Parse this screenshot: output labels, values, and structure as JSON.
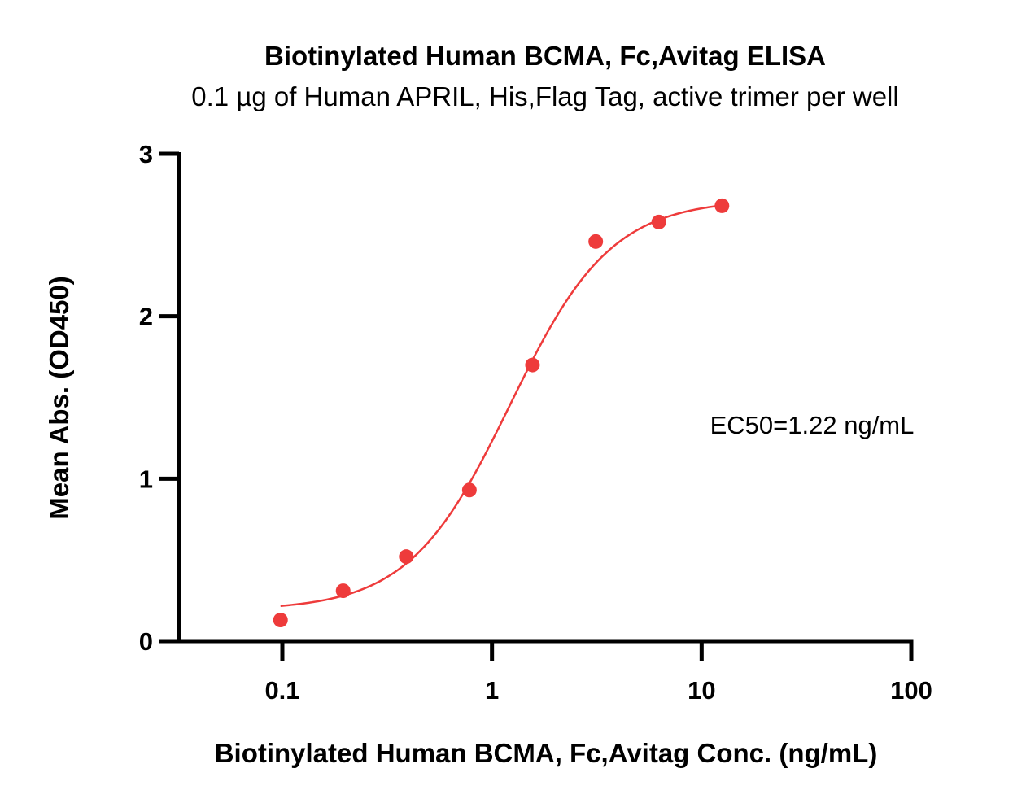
{
  "chart_data": {
    "type": "scatter",
    "title": "Biotinylated Human BCMA, Fc,Avitag ELISA",
    "subtitle": "0.1 µg of Human APRIL, His,Flag Tag, active trimer per well",
    "xlabel": "Biotinylated Human BCMA, Fc,Avitag Conc. (ng/mL)",
    "ylabel": "Mean Abs. (OD450)",
    "x_scale": "log",
    "xlim": [
      0.1,
      100
    ],
    "ylim": [
      0,
      3
    ],
    "x_ticks": [
      0.1,
      1,
      10,
      100
    ],
    "x_tick_labels": [
      "0.1",
      "1",
      "10",
      "100"
    ],
    "y_ticks": [
      0,
      1,
      2,
      3
    ],
    "y_tick_labels": [
      "0",
      "1",
      "2",
      "3"
    ],
    "grid": false,
    "annotation": "EC50=1.22 ng/mL",
    "color": "#ee3b3b",
    "series": [
      {
        "x": [
          0.098,
          0.195,
          0.39,
          0.78,
          1.56,
          3.125,
          6.25,
          12.5
        ],
        "y": [
          0.13,
          0.31,
          0.52,
          0.93,
          1.7,
          2.46,
          2.58,
          2.68
        ]
      }
    ],
    "fit_curve": {
      "model": "4PL",
      "bottom": 0.19,
      "top": 2.72,
      "ec50": 1.22,
      "hill": 1.8,
      "x_range": [
        0.098,
        12.5
      ]
    }
  }
}
